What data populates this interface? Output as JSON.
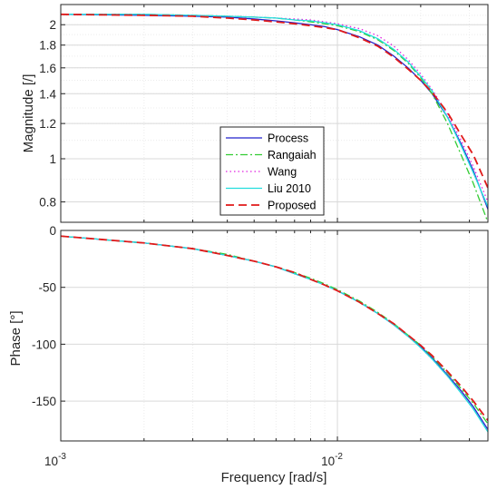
{
  "chart_data": [
    {
      "type": "line",
      "ylabel": "Magnitude [/]",
      "xscale": "log",
      "yscale": "log",
      "xlim": [
        0.001,
        0.035
      ],
      "ylim": [
        0.72,
        2.22
      ],
      "grid": true,
      "yticks": [
        {
          "v": 0.8,
          "label": "0.8"
        },
        {
          "v": 1.0,
          "label": "1"
        },
        {
          "v": 1.2,
          "label": "1.2"
        },
        {
          "v": 1.4,
          "label": "1.4"
        },
        {
          "v": 1.6,
          "label": "1.6"
        },
        {
          "v": 1.8,
          "label": "1.8"
        },
        {
          "v": 2.0,
          "label": "2"
        }
      ],
      "legend": {
        "placement": "center-left",
        "entries": [
          "Process",
          "Rangaiah",
          "Wang",
          "Liu 2010",
          "Proposed"
        ]
      },
      "x": [
        0.001,
        0.002,
        0.003,
        0.004,
        0.005,
        0.006,
        0.007,
        0.008,
        0.009,
        0.01,
        0.012,
        0.014,
        0.016,
        0.018,
        0.02,
        0.022,
        0.025,
        0.028,
        0.031,
        0.035
      ],
      "series": [
        {
          "name": "Process",
          "color": "#2222cc",
          "dash": "solid",
          "values": [
            2.11,
            2.1,
            2.09,
            2.08,
            2.06,
            2.04,
            2.02,
            2.0,
            1.98,
            1.95,
            1.88,
            1.8,
            1.7,
            1.6,
            1.5,
            1.4,
            1.24,
            1.08,
            0.94,
            0.77
          ]
        },
        {
          "name": "Rangaiah",
          "color": "#33cc33",
          "dash": "dashdot",
          "values": [
            2.11,
            2.11,
            2.1,
            2.09,
            2.08,
            2.07,
            2.05,
            2.03,
            2.01,
            1.99,
            1.93,
            1.85,
            1.75,
            1.64,
            1.52,
            1.4,
            1.2,
            1.02,
            0.88,
            0.72
          ]
        },
        {
          "name": "Wang",
          "color": "#e020e0",
          "dash": "dotted",
          "values": [
            2.11,
            2.11,
            2.1,
            2.09,
            2.08,
            2.07,
            2.06,
            2.05,
            2.03,
            2.01,
            1.96,
            1.89,
            1.79,
            1.67,
            1.55,
            1.43,
            1.26,
            1.1,
            0.96,
            0.8
          ]
        },
        {
          "name": "Liu 2010",
          "color": "#22dddd",
          "dash": "solid",
          "values": [
            2.11,
            2.11,
            2.1,
            2.09,
            2.08,
            2.07,
            2.05,
            2.04,
            2.02,
            2.0,
            1.94,
            1.86,
            1.76,
            1.65,
            1.53,
            1.42,
            1.24,
            1.07,
            0.93,
            0.78
          ]
        },
        {
          "name": "Proposed",
          "color": "#e01a1a",
          "dash": "dashed",
          "values": [
            2.11,
            2.1,
            2.09,
            2.07,
            2.05,
            2.03,
            2.01,
            1.99,
            1.97,
            1.95,
            1.87,
            1.79,
            1.69,
            1.59,
            1.5,
            1.41,
            1.27,
            1.13,
            1.02,
            0.86
          ]
        }
      ]
    },
    {
      "type": "line",
      "xlabel": "Frequency [rad/s]",
      "ylabel": "Phase [°]",
      "xscale": "log",
      "xlim": [
        0.001,
        0.035
      ],
      "ylim": [
        -185,
        0
      ],
      "grid": true,
      "yticks": [
        {
          "v": 0,
          "label": "0"
        },
        {
          "v": -50,
          "label": "-50"
        },
        {
          "v": -100,
          "label": "-100"
        },
        {
          "v": -150,
          "label": "-150"
        }
      ],
      "xticks": [
        {
          "v": 0.001,
          "base": "10",
          "exp": "-3"
        },
        {
          "v": 0.01,
          "base": "10",
          "exp": "-2"
        }
      ],
      "x": [
        0.001,
        0.002,
        0.003,
        0.004,
        0.005,
        0.006,
        0.007,
        0.008,
        0.009,
        0.01,
        0.012,
        0.014,
        0.016,
        0.018,
        0.02,
        0.022,
        0.025,
        0.028,
        0.031,
        0.035
      ],
      "series": [
        {
          "name": "Process",
          "color": "#2222cc",
          "dash": "solid",
          "values": [
            -5,
            -11,
            -16,
            -22,
            -27,
            -32,
            -38,
            -43,
            -48,
            -53,
            -63,
            -73,
            -83,
            -93,
            -102,
            -112,
            -127,
            -141,
            -155,
            -175
          ]
        },
        {
          "name": "Rangaiah",
          "color": "#33cc33",
          "dash": "dashdot",
          "values": [
            -5,
            -11,
            -16,
            -21,
            -27,
            -32,
            -37,
            -42,
            -47,
            -52,
            -62,
            -72,
            -82,
            -92,
            -101,
            -111,
            -125,
            -139,
            -152,
            -170
          ]
        },
        {
          "name": "Wang",
          "color": "#e020e0",
          "dash": "dotted",
          "values": [
            -5,
            -11,
            -16,
            -22,
            -27,
            -32,
            -38,
            -43,
            -48,
            -53,
            -63,
            -73,
            -83,
            -93,
            -103,
            -113,
            -128,
            -142,
            -157,
            -176
          ]
        },
        {
          "name": "Liu 2010",
          "color": "#22dddd",
          "dash": "solid",
          "values": [
            -5,
            -11,
            -16,
            -22,
            -27,
            -32,
            -38,
            -43,
            -48,
            -53,
            -63,
            -73,
            -83,
            -93,
            -103,
            -113,
            -128,
            -143,
            -157,
            -177
          ]
        },
        {
          "name": "Proposed",
          "color": "#e01a1a",
          "dash": "dashed",
          "values": [
            -5,
            -11,
            -16,
            -22,
            -27,
            -32,
            -37,
            -43,
            -48,
            -53,
            -63,
            -73,
            -82,
            -92,
            -101,
            -110,
            -124,
            -137,
            -150,
            -167
          ]
        }
      ]
    }
  ]
}
